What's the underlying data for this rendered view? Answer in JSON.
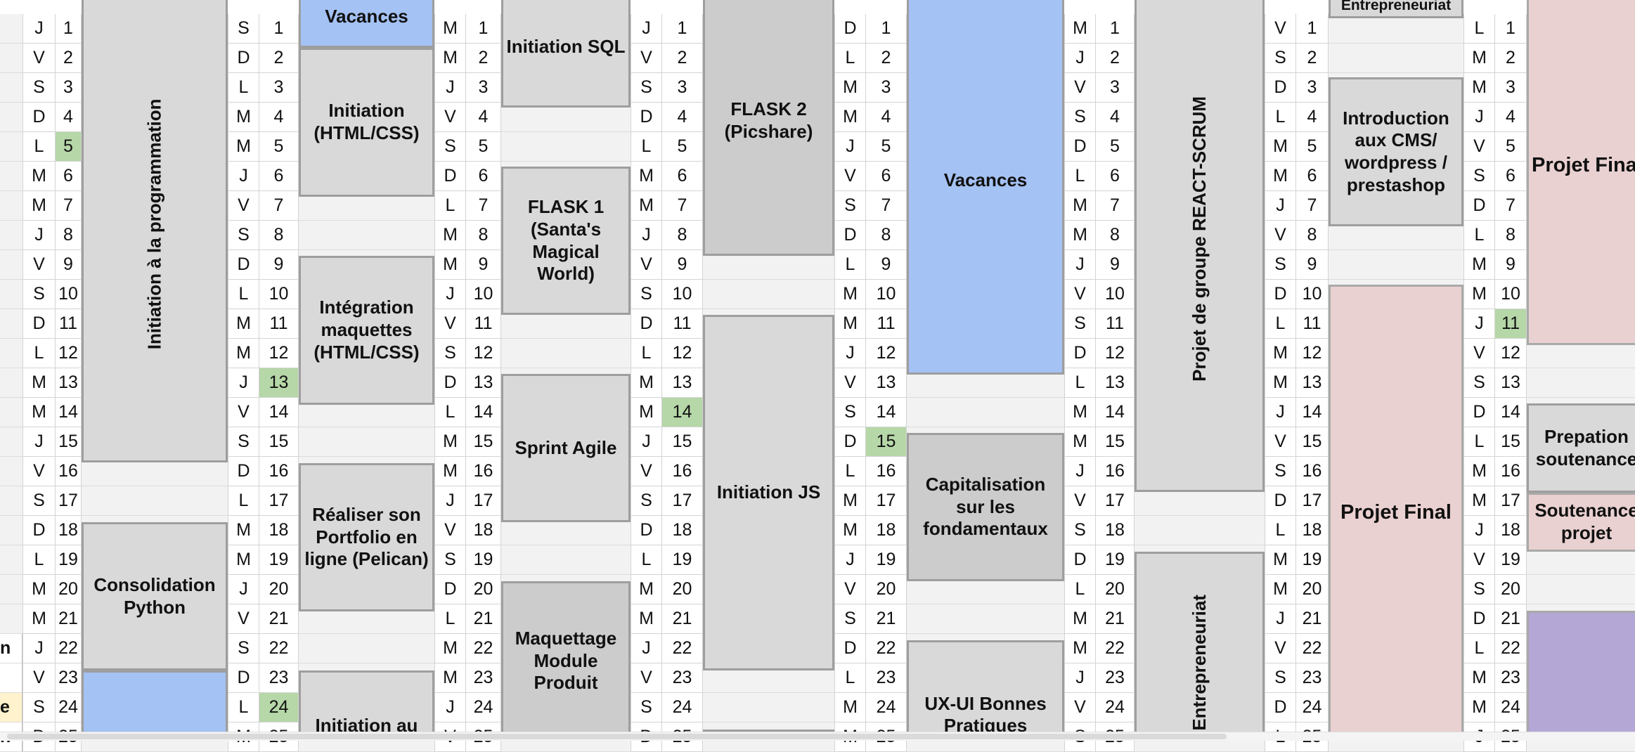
{
  "columns": [
    {
      "name": "col1",
      "days": [
        "J",
        "V",
        "S",
        "D",
        "L",
        "M",
        "M",
        "J",
        "V",
        "S",
        "D",
        "L",
        "M",
        "M",
        "J",
        "V",
        "S",
        "D",
        "L",
        "M",
        "M",
        "J",
        "V",
        "S",
        "D"
      ],
      "highlight": [
        5
      ]
    },
    {
      "name": "col2",
      "days": [
        "S",
        "D",
        "L",
        "M",
        "M",
        "J",
        "V",
        "S",
        "D",
        "L",
        "M",
        "M",
        "J",
        "V",
        "S",
        "D",
        "L",
        "M",
        "M",
        "J",
        "V",
        "S",
        "D",
        "L",
        "M"
      ],
      "highlight": [
        13,
        24
      ]
    },
    {
      "name": "col3",
      "days": [
        "M",
        "M",
        "J",
        "V",
        "S",
        "D",
        "L",
        "M",
        "M",
        "J",
        "V",
        "S",
        "D",
        "L",
        "M",
        "M",
        "J",
        "V",
        "S",
        "D",
        "L",
        "M",
        "M",
        "J",
        "V"
      ],
      "highlight": []
    },
    {
      "name": "col4",
      "days": [
        "J",
        "V",
        "S",
        "D",
        "L",
        "M",
        "M",
        "J",
        "V",
        "S",
        "D",
        "L",
        "M",
        "M",
        "J",
        "V",
        "S",
        "D",
        "L",
        "M",
        "M",
        "J",
        "V",
        "S",
        "D"
      ],
      "highlight": [
        14
      ]
    },
    {
      "name": "col5",
      "days": [
        "D",
        "L",
        "M",
        "M",
        "J",
        "V",
        "S",
        "D",
        "L",
        "M",
        "M",
        "J",
        "V",
        "S",
        "D",
        "L",
        "M",
        "M",
        "J",
        "V",
        "S",
        "D",
        "L",
        "M",
        "M"
      ],
      "highlight": [
        15
      ]
    },
    {
      "name": "col6",
      "days": [
        "M",
        "J",
        "V",
        "S",
        "D",
        "L",
        "M",
        "M",
        "J",
        "V",
        "S",
        "D",
        "L",
        "M",
        "M",
        "J",
        "V",
        "S",
        "D",
        "L",
        "M",
        "M",
        "J",
        "V",
        "S"
      ],
      "highlight": []
    },
    {
      "name": "col7",
      "days": [
        "V",
        "S",
        "D",
        "L",
        "M",
        "M",
        "J",
        "V",
        "S",
        "D",
        "L",
        "M",
        "M",
        "J",
        "V",
        "S",
        "D",
        "L",
        "M",
        "M",
        "J",
        "V",
        "S",
        "D",
        "L"
      ],
      "highlight": []
    },
    {
      "name": "col8",
      "days": [
        "L",
        "M",
        "M",
        "J",
        "V",
        "S",
        "D",
        "L",
        "M",
        "M",
        "J",
        "V",
        "S",
        "D",
        "L",
        "M",
        "M",
        "J",
        "V",
        "S",
        "D",
        "L",
        "M",
        "M",
        "J"
      ],
      "highlight": [
        11
      ]
    }
  ],
  "left_edge_labels": {
    "r22": "n",
    "r23": "",
    "r24": "e",
    "r25": "n"
  },
  "blocks": {
    "b1_1": "Initiation à la programmation",
    "b1_2": "Consolidation Python",
    "b1_3": "",
    "b2_1": "Vacances",
    "b2_2": "Initiation (HTML/CSS)",
    "b2_3": "Intégration maquettes (HTML/CSS)",
    "b2_4": "Réaliser son Portfolio en ligne (Pelican)",
    "b2_5": "Initiation au",
    "b3_1": "Initiation SQL",
    "b3_2": "FLASK 1 (Santa's Magical World)",
    "b3_3": "Sprint Agile",
    "b3_4": "Maquettage Module Produit",
    "b4_1": "FLASK 2 (Picshare)",
    "b4_2": "Initiation JS",
    "b5_1": "Vacances",
    "b5_2": "Capitalisation sur les fondamentaux",
    "b5_3": "UX-UI  Bonnes Pratiques",
    "b6_1": "Projet de groupe REACT-SCRUM",
    "b6_2": "Entrepreneuriat",
    "b7_1": "Entrepreneuriat",
    "b7_2": "Introduction aux CMS/ wordpress / prestashop",
    "b7_3": "Projet Final",
    "b8_1": "Projet Final",
    "b8_2": "Prepation soutenance",
    "b8_3": "Soutenance projet",
    "b8_4": ""
  },
  "colors": {
    "highlight": "#b6d7a8",
    "vacances": "#a4c2f4",
    "projet": "#ead1d1",
    "course": "#d9d9d9",
    "purple": "#b4a7d6"
  }
}
